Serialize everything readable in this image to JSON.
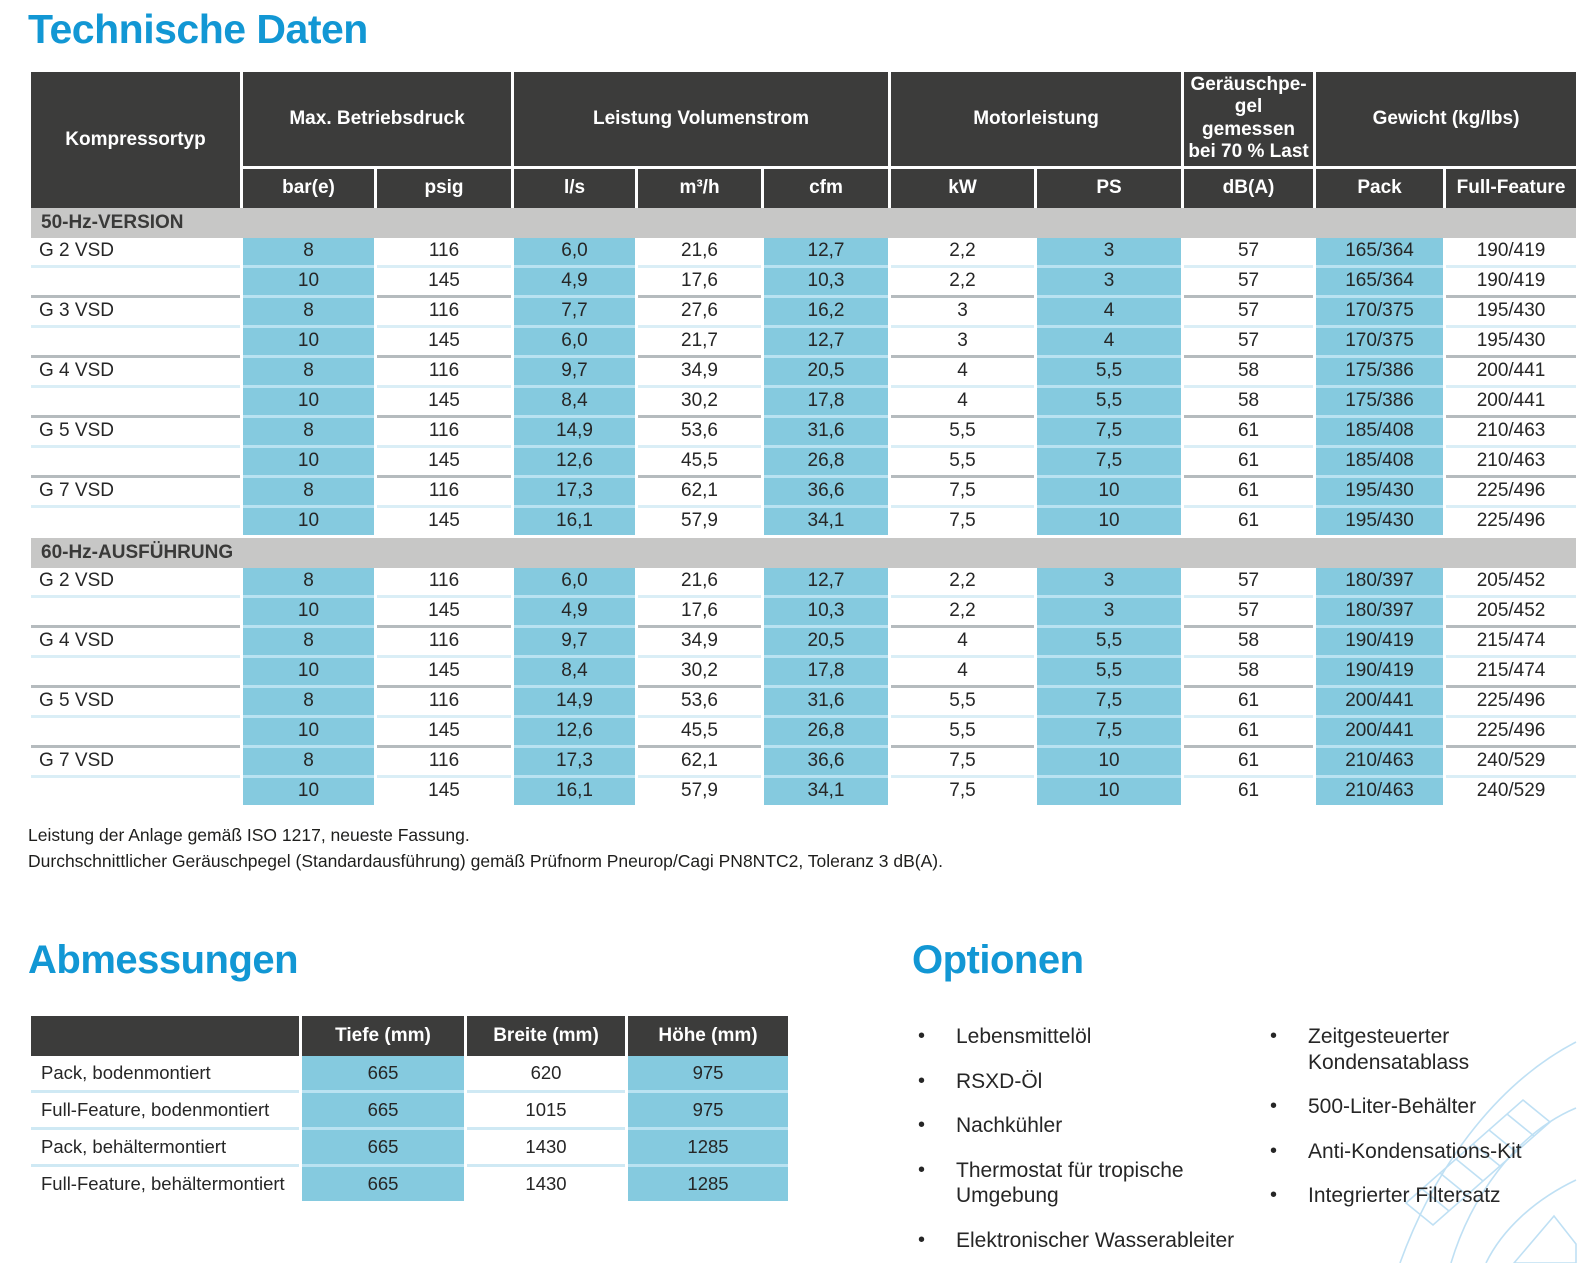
{
  "titles": {
    "tech": "Technische Daten",
    "dims": "Abmessungen",
    "options": "Optionen"
  },
  "colors": {
    "accent": "#1297D4",
    "header_bg": "#3C3C3B",
    "band_bg": "#C7C7C6",
    "highlight": "#85CADF"
  },
  "tech_table": {
    "type_header": "Kompressortyp",
    "groups": [
      {
        "label": "Max. Betriebsdruck",
        "units": [
          "bar(e)",
          "psig"
        ]
      },
      {
        "label": "Leistung Volumenstrom",
        "units": [
          "l/s",
          "m³/h",
          "cfm"
        ]
      },
      {
        "label": "Motorleistung",
        "units": [
          "kW",
          "PS"
        ]
      },
      {
        "label": "Geräuschpe-gel gemessen bei 70 % Last",
        "units": [
          "dB(A)"
        ]
      },
      {
        "label": "Gewicht (kg/lbs)",
        "units": [
          "Pack",
          "Full-Feature"
        ]
      }
    ],
    "sections": [
      {
        "label": "50-Hz-VERSION",
        "rows": [
          {
            "type": "G 2 VSD",
            "values": [
              "8",
              "116",
              "6,0",
              "21,6",
              "12,7",
              "2,2",
              "3",
              "57",
              "165/364",
              "190/419"
            ]
          },
          {
            "type": "",
            "values": [
              "10",
              "145",
              "4,9",
              "17,6",
              "10,3",
              "2,2",
              "3",
              "57",
              "165/364",
              "190/419"
            ]
          },
          {
            "type": "G 3 VSD",
            "values": [
              "8",
              "116",
              "7,7",
              "27,6",
              "16,2",
              "3",
              "4",
              "57",
              "170/375",
              "195/430"
            ]
          },
          {
            "type": "",
            "values": [
              "10",
              "145",
              "6,0",
              "21,7",
              "12,7",
              "3",
              "4",
              "57",
              "170/375",
              "195/430"
            ]
          },
          {
            "type": "G 4 VSD",
            "values": [
              "8",
              "116",
              "9,7",
              "34,9",
              "20,5",
              "4",
              "5,5",
              "58",
              "175/386",
              "200/441"
            ]
          },
          {
            "type": "",
            "values": [
              "10",
              "145",
              "8,4",
              "30,2",
              "17,8",
              "4",
              "5,5",
              "58",
              "175/386",
              "200/441"
            ]
          },
          {
            "type": "G 5 VSD",
            "values": [
              "8",
              "116",
              "14,9",
              "53,6",
              "31,6",
              "5,5",
              "7,5",
              "61",
              "185/408",
              "210/463"
            ]
          },
          {
            "type": "",
            "values": [
              "10",
              "145",
              "12,6",
              "45,5",
              "26,8",
              "5,5",
              "7,5",
              "61",
              "185/408",
              "210/463"
            ]
          },
          {
            "type": "G 7 VSD",
            "values": [
              "8",
              "116",
              "17,3",
              "62,1",
              "36,6",
              "7,5",
              "10",
              "61",
              "195/430",
              "225/496"
            ]
          },
          {
            "type": "",
            "values": [
              "10",
              "145",
              "16,1",
              "57,9",
              "34,1",
              "7,5",
              "10",
              "61",
              "195/430",
              "225/496"
            ]
          }
        ]
      },
      {
        "label": "60-Hz-AUSFÜHRUNG",
        "rows": [
          {
            "type": "G 2 VSD",
            "values": [
              "8",
              "116",
              "6,0",
              "21,6",
              "12,7",
              "2,2",
              "3",
              "57",
              "180/397",
              "205/452"
            ]
          },
          {
            "type": "",
            "values": [
              "10",
              "145",
              "4,9",
              "17,6",
              "10,3",
              "2,2",
              "3",
              "57",
              "180/397",
              "205/452"
            ]
          },
          {
            "type": "G 4 VSD",
            "values": [
              "8",
              "116",
              "9,7",
              "34,9",
              "20,5",
              "4",
              "5,5",
              "58",
              "190/419",
              "215/474"
            ]
          },
          {
            "type": "",
            "values": [
              "10",
              "145",
              "8,4",
              "30,2",
              "17,8",
              "4",
              "5,5",
              "58",
              "190/419",
              "215/474"
            ]
          },
          {
            "type": "G 5 VSD",
            "values": [
              "8",
              "116",
              "14,9",
              "53,6",
              "31,6",
              "5,5",
              "7,5",
              "61",
              "200/441",
              "225/496"
            ]
          },
          {
            "type": "",
            "values": [
              "10",
              "145",
              "12,6",
              "45,5",
              "26,8",
              "5,5",
              "7,5",
              "61",
              "200/441",
              "225/496"
            ]
          },
          {
            "type": "G 7 VSD",
            "values": [
              "8",
              "116",
              "17,3",
              "62,1",
              "36,6",
              "7,5",
              "10",
              "61",
              "210/463",
              "240/529"
            ]
          },
          {
            "type": "",
            "values": [
              "10",
              "145",
              "16,1",
              "57,9",
              "34,1",
              "7,5",
              "10",
              "61",
              "210/463",
              "240/529"
            ]
          }
        ]
      }
    ]
  },
  "footnotes": [
    "Leistung der Anlage gemäß ISO 1217, neueste Fassung.",
    "Durchschnittlicher Geräuschpegel (Standardausführung) gemäß Prüfnorm Pneurop/Cagi PN8NTC2, Toleranz 3 dB(A)."
  ],
  "dim_table": {
    "headers": [
      "Tiefe (mm)",
      "Breite (mm)",
      "Höhe (mm)"
    ],
    "rows": [
      {
        "label": "Pack, bodenmontiert",
        "values": [
          "665",
          "620",
          "975"
        ]
      },
      {
        "label": "Full-Feature, bodenmontiert",
        "values": [
          "665",
          "1015",
          "975"
        ]
      },
      {
        "label": "Pack, behältermontiert",
        "values": [
          "665",
          "1430",
          "1285"
        ]
      },
      {
        "label": "Full-Feature, behältermontiert",
        "values": [
          "665",
          "1430",
          "1285"
        ]
      }
    ]
  },
  "options": {
    "col1": [
      "Lebensmittelöl",
      "RSXD-Öl",
      "Nachkühler",
      "Thermostat für tropische Umgebung",
      "Elektronischer Wasserableiter"
    ],
    "col2": [
      "Zeitgesteuerter Kondensatablass",
      "500-Liter-Behälter",
      "Anti-Kondensations-Kit",
      "Integrierter Filtersatz"
    ]
  }
}
